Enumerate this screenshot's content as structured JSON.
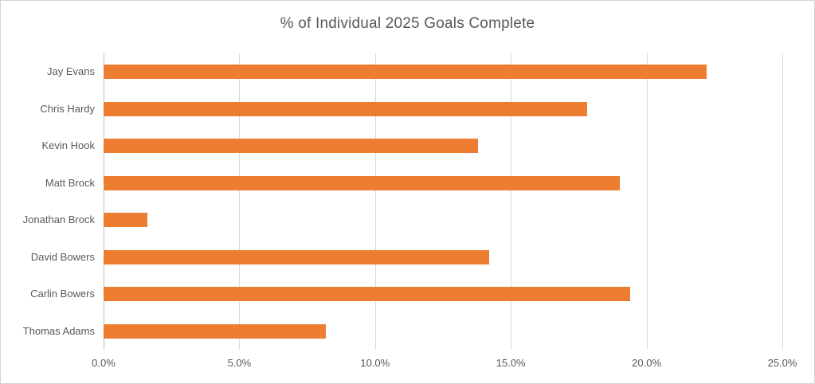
{
  "chart_data": {
    "type": "bar",
    "orientation": "horizontal",
    "title": "% of Individual 2025 Goals Complete",
    "categories": [
      "Jay Evans",
      "Chris Hardy",
      "Kevin Hook",
      "Matt Brock",
      "Jonathan Brock",
      "David Bowers",
      "Carlin Bowers",
      "Thomas Adams"
    ],
    "values": [
      22.2,
      17.8,
      13.8,
      19.0,
      1.6,
      14.2,
      19.4,
      8.2
    ],
    "value_unit": "%",
    "xlabel": "",
    "ylabel": "",
    "xlim": [
      0,
      25
    ],
    "x_tick_labels": [
      "0.0%",
      "5.0%",
      "10.0%",
      "15.0%",
      "20.0%",
      "25.0%"
    ],
    "x_tick_values": [
      0,
      5,
      10,
      15,
      20,
      25
    ],
    "grid": true,
    "legend": false,
    "colors": {
      "bar": "#ED7D31",
      "title_text": "#595959",
      "axis_text": "#595959",
      "gridline": "#D9D9D9",
      "axis_line": "#BFBFBF",
      "background": "#FFFFFF",
      "border": "#D2D2D2"
    }
  }
}
